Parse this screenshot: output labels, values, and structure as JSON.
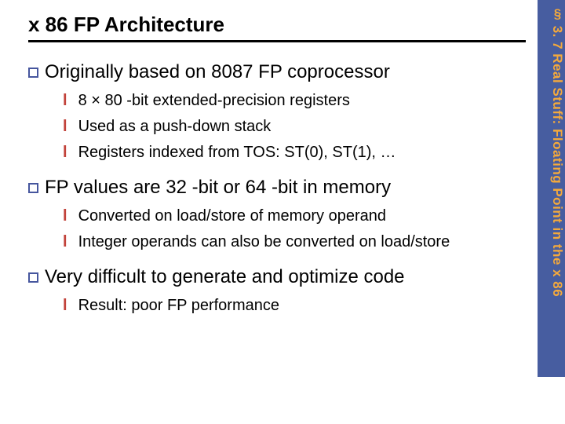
{
  "side_tab": "§ 3. 7 Real Stuff: Floating Point in the x 86",
  "title": "x 86 FP Architecture",
  "sections": [
    {
      "text": "Originally based on 8087 FP coprocessor",
      "items": [
        "8 × 80 -bit extended-precision registers",
        "Used as a push-down stack",
        "Registers indexed from TOS: ST(0), ST(1), …"
      ]
    },
    {
      "text": "FP values are 32 -bit or 64 -bit in memory",
      "items": [
        "Converted on load/store of memory operand",
        "Integer operands can also be converted on load/store"
      ]
    },
    {
      "text": "Very difficult to generate and optimize code",
      "items": [
        "Result: poor FP performance"
      ]
    }
  ],
  "colors": {
    "side_bg": "#475da0",
    "side_text": "#f4a93c",
    "sq_border": "#46569e",
    "l_color": "#c2423a"
  }
}
